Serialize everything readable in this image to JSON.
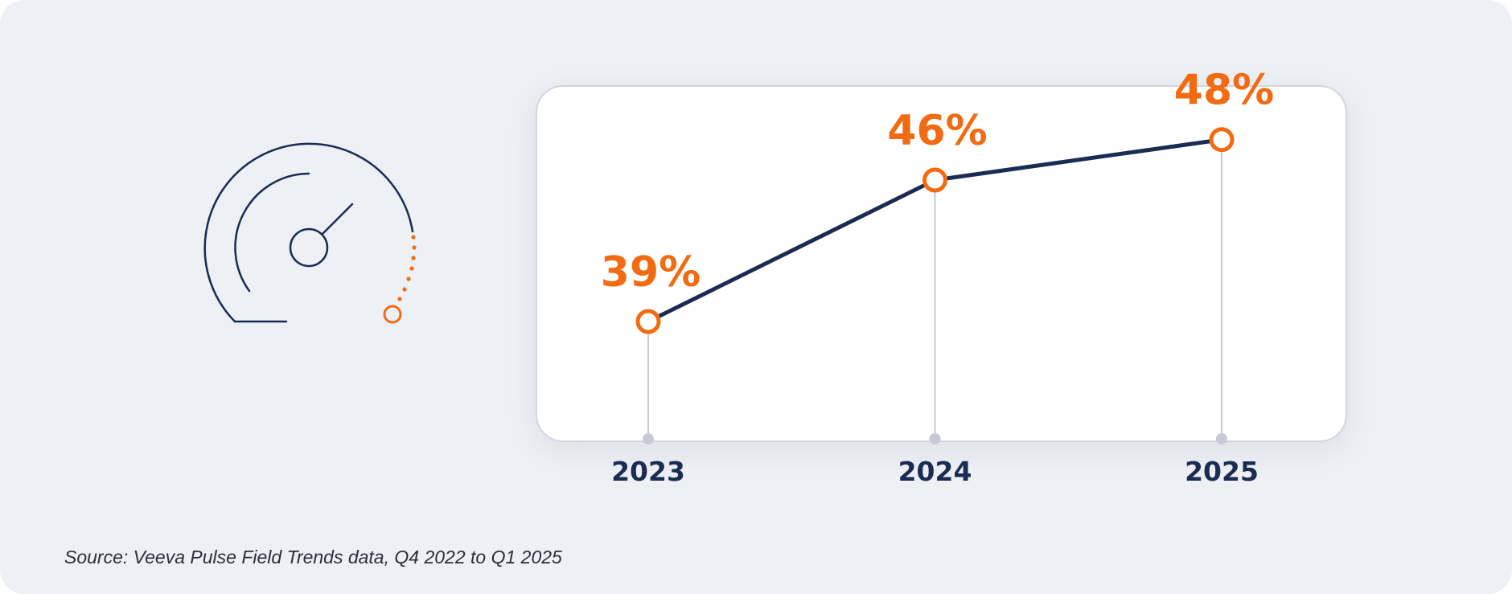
{
  "colors": {
    "background": "#edf0f5",
    "navy": "#1b2c52",
    "orange": "#f26b12",
    "stem": "#c6cad3"
  },
  "gauge": {
    "icon": "speedometer-icon"
  },
  "chart_data": {
    "type": "line",
    "title": "",
    "xlabel": "",
    "ylabel": "",
    "x": [
      "2023",
      "2024",
      "2025"
    ],
    "values": [
      39,
      46,
      48
    ],
    "value_labels": [
      "39%",
      "46%",
      "48%"
    ],
    "ylim": [
      20,
      55
    ],
    "grid": false
  },
  "source": {
    "text": "Source: Veeva Pulse Field Trends data, Q4 2022 to Q1 2025"
  }
}
